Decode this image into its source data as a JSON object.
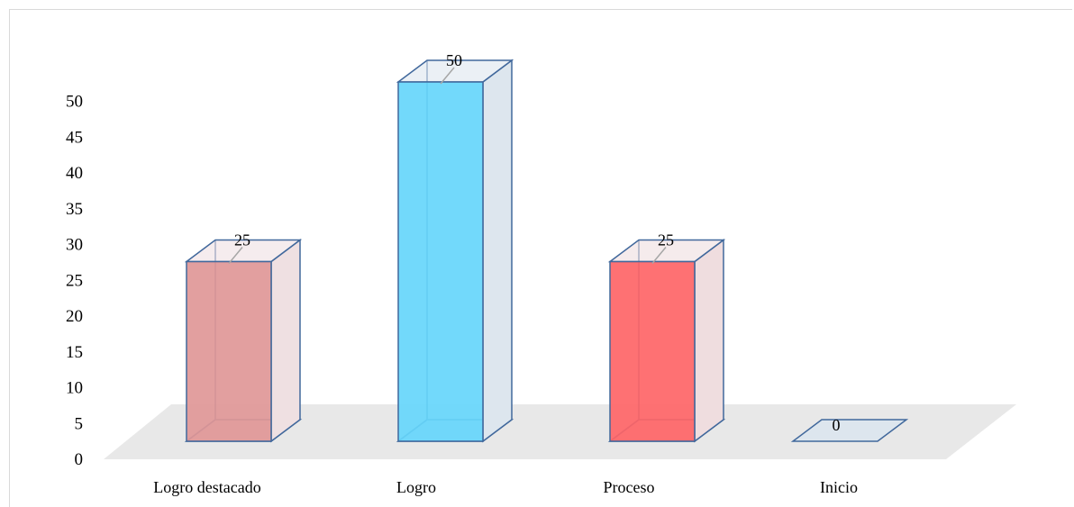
{
  "chart_data": {
    "type": "bar",
    "style": "3d-column",
    "categories": [
      "Logro destacado",
      "Logro",
      "Proceso",
      "Inicio"
    ],
    "values": [
      25,
      50,
      25,
      0
    ],
    "data_labels": [
      "25",
      "50",
      "25",
      "0"
    ],
    "y_ticks": [
      "0",
      "5",
      "10",
      "15",
      "20",
      "25",
      "30",
      "35",
      "40",
      "45",
      "50"
    ],
    "ylim": [
      0,
      50
    ],
    "grid": false,
    "legend": "none",
    "colors": {
      "front": [
        "#e09797",
        "#66d6fb",
        "#fe6567",
        "#dde6ee"
      ],
      "side": [
        "#efe0e2",
        "#dde6ee",
        "#efdddf",
        "#dde6ee"
      ],
      "edge": "#41689c",
      "floor": "#e8e8e8",
      "leader": "#a6a6a6"
    }
  }
}
